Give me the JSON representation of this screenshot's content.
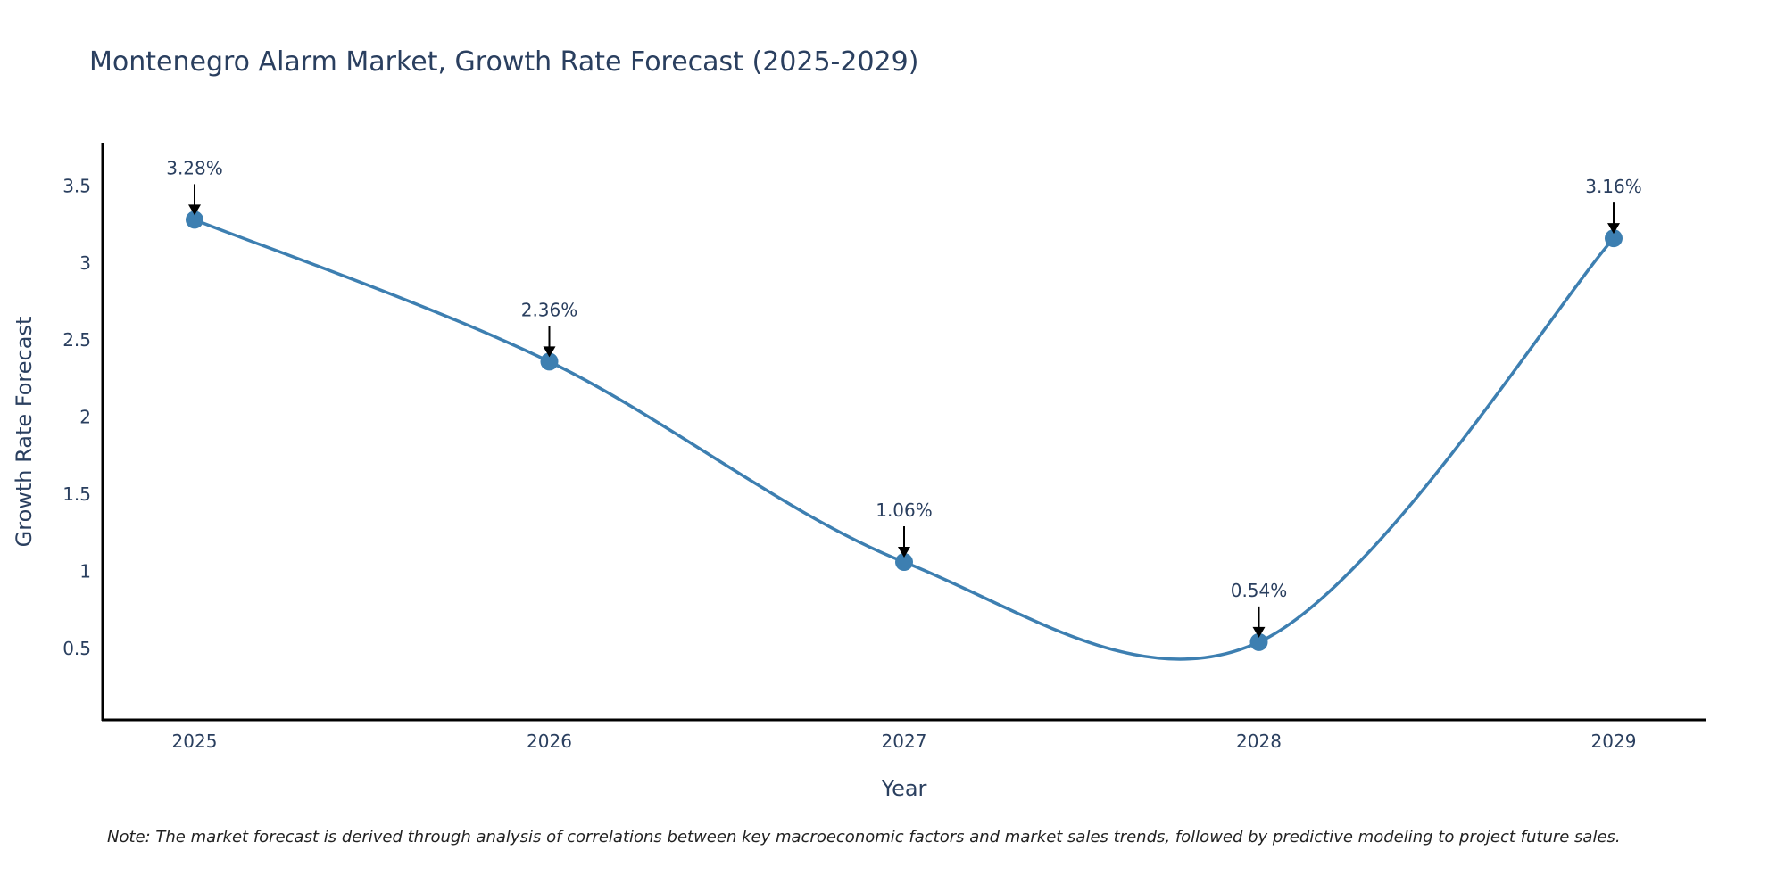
{
  "chart_data": {
    "type": "line",
    "title": "Montenegro Alarm Market, Growth Rate Forecast (2025-2029)",
    "xlabel": "Year",
    "ylabel": "Growth Rate Forecast",
    "categories": [
      "2025",
      "2026",
      "2027",
      "2028",
      "2029"
    ],
    "series": [
      {
        "name": "Growth Rate Forecast",
        "values": [
          3.28,
          2.36,
          1.06,
          0.54,
          3.16
        ],
        "labels": [
          "3.28%",
          "2.36%",
          "1.06%",
          "0.54%",
          "3.16%"
        ]
      }
    ],
    "ylim": [
      0.03,
      3.78
    ],
    "yticks": [
      0.5,
      1,
      1.5,
      2,
      2.5,
      3,
      3.5
    ],
    "ytick_labels": [
      "0.5",
      "1",
      "1.5",
      "2",
      "2.5",
      "3",
      "3.5"
    ],
    "grid": false,
    "line_smoothing": "spline",
    "marker": "circle"
  },
  "note": "Note: The market forecast is derived through analysis of correlations between key macroeconomic factors and market sales trends, followed by predictive modeling to project future sales.",
  "colors": {
    "series": "#3d7fb1",
    "marker": "#3d7fb1",
    "text": "#2a3f5f",
    "axis": "#000000"
  }
}
